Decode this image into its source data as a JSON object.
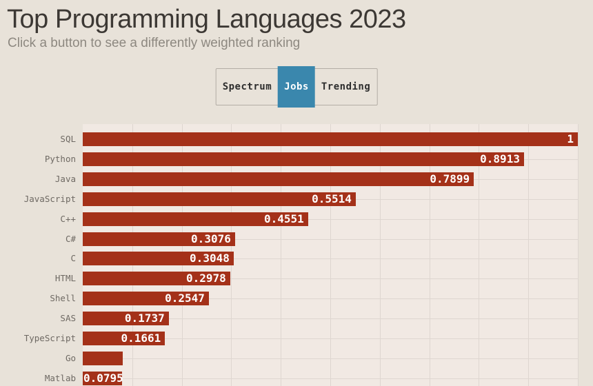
{
  "page": {
    "title": "Top Programming Languages 2023",
    "subtitle": "Click a button to see a differently weighted ranking",
    "background_color": "#e8e2d9",
    "title_color": "#3c3834",
    "subtitle_color": "#8d8880"
  },
  "toolbar": {
    "buttons": [
      {
        "label": "Spectrum",
        "active": false
      },
      {
        "label": "Jobs",
        "active": true
      },
      {
        "label": "Trending",
        "active": false
      }
    ],
    "active_background": "#3a87ad",
    "active_text_color": "#ffffff"
  },
  "chart_data": {
    "type": "bar",
    "orientation": "horizontal",
    "categories": [
      "SQL",
      "Python",
      "Java",
      "JavaScript",
      "C++",
      "C#",
      "C",
      "HTML",
      "Shell",
      "SAS",
      "TypeScript",
      "Go",
      "Matlab"
    ],
    "values": [
      1,
      0.8913,
      0.7899,
      0.5514,
      0.4551,
      0.3076,
      0.3048,
      0.2978,
      0.2547,
      0.1737,
      0.1661,
      0.081,
      0.0795
    ],
    "value_labels": [
      "1",
      "0.8913",
      "0.7899",
      "0.5514",
      "0.4551",
      "0.3076",
      "0.3048",
      "0.2978",
      "0.2547",
      "0.1737",
      "0.1661",
      "",
      "0.0795"
    ],
    "xlim": [
      0,
      1
    ],
    "grid": {
      "x_step": 0.1,
      "tick_labels_visible": false
    },
    "legend": "none",
    "colors": {
      "bar": "#a43119",
      "plot_background": "#f1e9e3",
      "gridline": "#ded6d0",
      "category_label": "#6e6963",
      "value_label": "#ffffff"
    }
  }
}
